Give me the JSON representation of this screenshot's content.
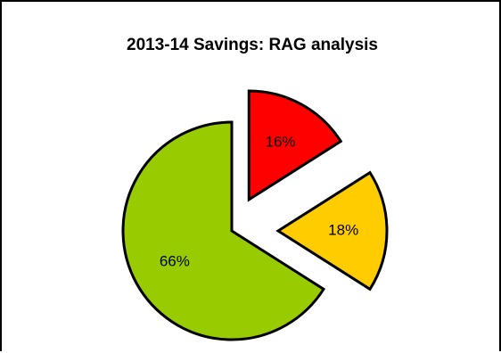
{
  "chart_data": {
    "type": "pie",
    "title": "2013-14 Savings: RAG analysis",
    "slices": [
      {
        "label": "Red",
        "value": 16,
        "display": "16%",
        "color": "#ff0000"
      },
      {
        "label": "Amber",
        "value": 18,
        "display": "18%",
        "color": "#ffcc00"
      },
      {
        "label": "Green",
        "value": 66,
        "display": "66%",
        "color": "#99cc00"
      }
    ],
    "exploded": true,
    "legend": "none"
  }
}
